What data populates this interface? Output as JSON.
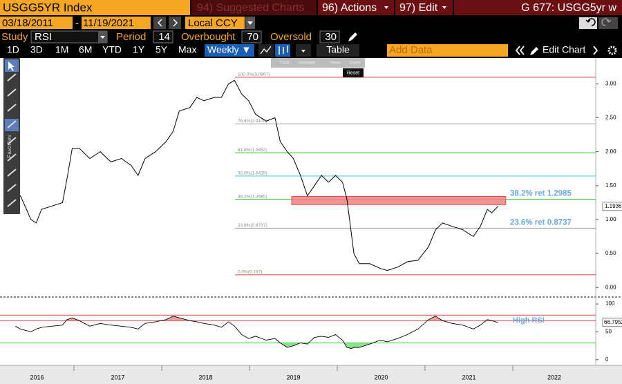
{
  "toolbar": {
    "security": "USGG5YR Index",
    "suggested": "94) Suggested Charts",
    "actions": "96) Actions",
    "edit": "97) Edit",
    "page_title": "G 677: USGG5yr w"
  },
  "dates": {
    "start": "03/18/2011",
    "sep": "-",
    "end": "11/19/2021",
    "currency": "Local CCY"
  },
  "study": {
    "label": "Study",
    "value": "RSI",
    "period_label": "Period",
    "period": 14,
    "overbought_label": "Overbought",
    "overbought": 70,
    "oversold_label": "Oversold",
    "oversold": 30
  },
  "ranges": [
    "1D",
    "3D",
    "1M",
    "6M",
    "YTD",
    "1Y",
    "5Y",
    "Max"
  ],
  "frequency": "Weekly ▼",
  "table": "Table",
  "add_data": "Add Data",
  "edit_chart": "Edit Chart",
  "tools": [
    "Track",
    "Annotate",
    "News",
    "Zoom"
  ],
  "reset": "Reset",
  "favorites": "Favorites",
  "chart_data": {
    "type": "line",
    "xlim": [
      2016.157,
      2022.945
    ],
    "xticks": [
      2016,
      2017,
      2018,
      2019,
      2020,
      2021,
      2022
    ],
    "price": {
      "color": "#000000",
      "x": [
        2016.33,
        2016.39,
        2016.51,
        2016.57,
        2016.63,
        2016.75,
        2016.87,
        2016.92,
        2016.98,
        2017.06,
        2017.18,
        2017.3,
        2017.42,
        2017.54,
        2017.65,
        2017.73,
        2017.81,
        2017.93,
        2018.05,
        2018.13,
        2018.2,
        2018.32,
        2018.4,
        2018.48,
        2018.6,
        2018.68,
        2018.76,
        2018.83,
        2018.91,
        2018.99,
        2019.07,
        2019.19,
        2019.29,
        2019.35,
        2019.43,
        2019.5,
        2019.58,
        2019.66,
        2019.74,
        2019.82,
        2019.9,
        2019.98,
        2020.06,
        2020.11,
        2020.16,
        2020.19,
        2020.25,
        2020.37,
        2020.49,
        2020.57,
        2020.69,
        2020.8,
        2020.92,
        2021.04,
        2021.12,
        2021.2,
        2021.31,
        2021.43,
        2021.55,
        2021.63,
        2021.71,
        2021.76,
        2021.83
      ],
      "values": [
        1.28,
        1.35,
        1.0,
        0.95,
        1.15,
        1.2,
        1.25,
        1.6,
        2.05,
        2.05,
        1.9,
        2.0,
        1.85,
        1.9,
        1.8,
        1.65,
        1.9,
        2.0,
        2.15,
        2.3,
        2.6,
        2.65,
        2.8,
        2.75,
        2.8,
        2.8,
        3.0,
        3.05,
        2.85,
        2.75,
        2.55,
        2.45,
        2.5,
        2.15,
        2.0,
        1.9,
        1.65,
        1.35,
        1.5,
        1.65,
        1.55,
        1.65,
        1.55,
        1.3,
        0.8,
        0.5,
        0.35,
        0.35,
        0.28,
        0.25,
        0.3,
        0.38,
        0.4,
        0.6,
        0.85,
        0.95,
        0.9,
        0.85,
        0.75,
        0.9,
        1.15,
        1.1,
        1.1936
      ],
      "ylim": [
        -0.12,
        3.37
      ],
      "yticks": [
        {
          "value": 0,
          "label": "0.00"
        },
        {
          "value": 0.5,
          "label": "0.50"
        },
        {
          "value": 1,
          "label": "1.00"
        },
        {
          "value": 1.5,
          "label": "1.50"
        },
        {
          "value": 2,
          "label": "2.00"
        },
        {
          "value": 2.5,
          "label": "2.50"
        },
        {
          "value": 3,
          "label": "3.00"
        }
      ]
    },
    "fib_levels": [
      {
        "label": "100.0%(3.0967)",
        "value": 3.0967,
        "color": "#e04040"
      },
      {
        "label": "76.4%(2.4100)",
        "value": 2.41,
        "color": "#999999"
      },
      {
        "label": "61.8%(1.9852)",
        "value": 1.9852,
        "color": "#33cc33"
      },
      {
        "label": "50.0%(1.6419)",
        "value": 1.6419,
        "color": "#33ccdd"
      },
      {
        "label": "38.2%(1.2985)",
        "value": 1.2985,
        "color": "#33cc33"
      },
      {
        "label": "23.6%(0.8737)",
        "value": 0.8737,
        "color": "#999999"
      },
      {
        "label": "0.0%(0.187)",
        "value": 0.187,
        "color": "#e04040"
      }
    ],
    "annotations": [
      {
        "text": "38.2% ret 1.2985",
        "value": 1.2985
      },
      {
        "text": "23.6%  ret 0.8737",
        "value": 0.8737
      }
    ],
    "highlight": {
      "x": [
        2019.48,
        2021.92
      ],
      "y": [
        1.22,
        1.34
      ],
      "color": "#f08080"
    },
    "rsi": {
      "color": "#000000",
      "values": [
        60,
        55,
        50,
        55,
        58,
        60,
        62,
        72,
        75,
        70,
        60,
        65,
        62,
        60,
        58,
        55,
        65,
        68,
        72,
        78,
        75,
        70,
        68,
        65,
        62,
        58,
        68,
        60,
        45,
        38,
        42,
        35,
        38,
        30,
        22,
        25,
        30,
        28,
        40,
        42,
        40,
        45,
        35,
        22,
        20,
        22,
        22,
        28,
        35,
        32,
        38,
        45,
        55,
        72,
        78,
        70,
        65,
        62,
        55,
        62,
        72,
        70,
        66.7952
      ],
      "ylim": [
        -9,
        110
      ],
      "yticks": [
        0,
        50,
        100
      ],
      "high_line": 80,
      "high_text": "High RSI"
    }
  }
}
